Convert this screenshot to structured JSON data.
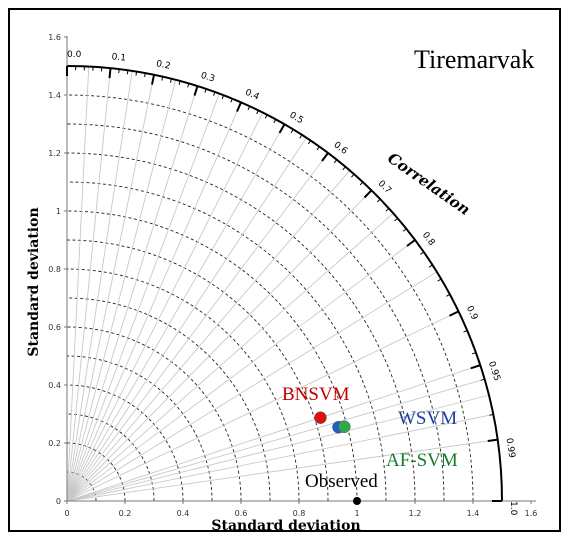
{
  "chart_data": {
    "type": "taylor",
    "title": "Tiremarvak",
    "xlabel": "Standard deviation",
    "ylabel": "Standard deviation",
    "correlation_label": "Correlation",
    "std_range": [
      0,
      1.5
    ],
    "x_ticks": [
      "0",
      "0.2",
      "0.4",
      "0.6",
      "0.8",
      "1",
      "1.2",
      "1.4",
      "1.6"
    ],
    "y_ticks": [
      "0",
      "0.2",
      "0.4",
      "0.6",
      "0.8",
      "1",
      "1.2",
      "1.4",
      "1.6"
    ],
    "correlation_ticks": [
      "0.0",
      "0.1",
      "0.2",
      "0.3",
      "0.4",
      "0.5",
      "0.6",
      "0.7",
      "0.8",
      "0.9",
      "0.95",
      "0.99",
      "1.0"
    ],
    "grid": true,
    "reference": {
      "name": "Observed",
      "std": 1.0,
      "color": "#000000"
    },
    "points": [
      {
        "name": "BNSVM",
        "std": 0.92,
        "correlation": 0.95,
        "color": "#e01010"
      },
      {
        "name": "WSVM",
        "std": 0.97,
        "correlation": 0.965,
        "color": "#1f5fc8"
      },
      {
        "name": "AF-SVM",
        "std": 0.99,
        "correlation": 0.966,
        "color": "#2ea84a"
      }
    ],
    "label_colors": {
      "BNSVM": "#c00000",
      "WSVM": "#1f3f9f",
      "AF-SVM": "#1a7a2a",
      "Observed": "#000000"
    }
  }
}
